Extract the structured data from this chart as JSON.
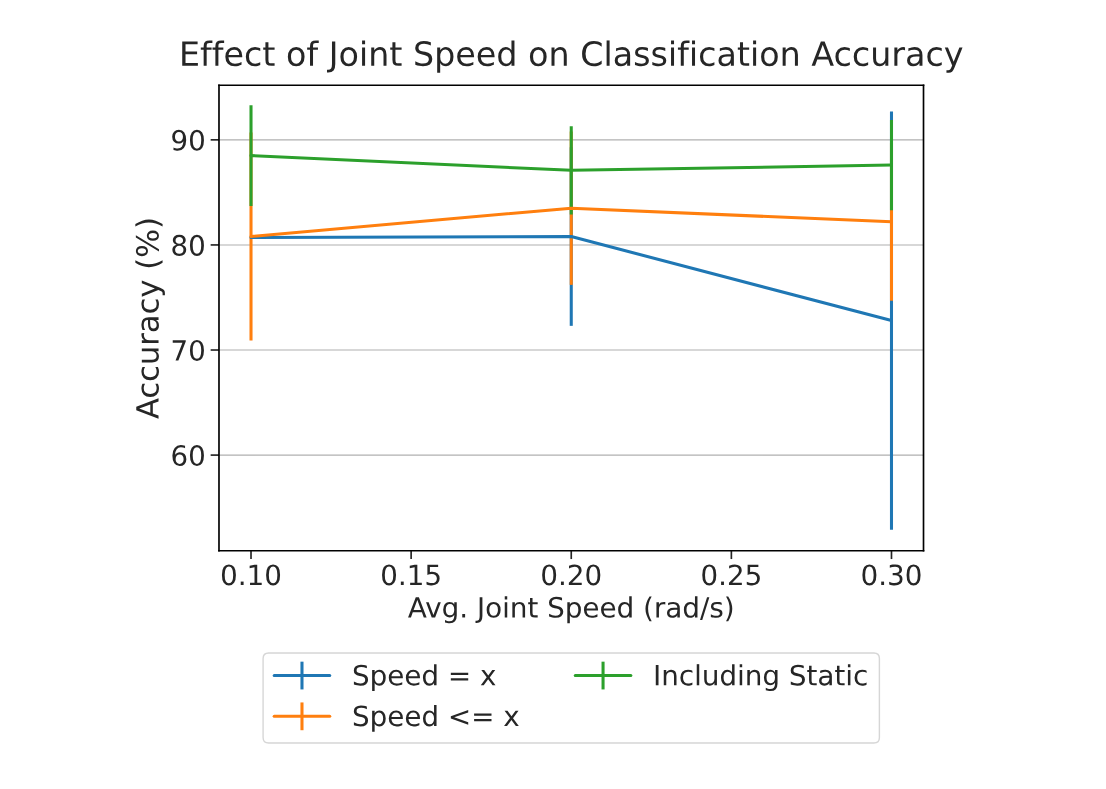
{
  "chart_data": {
    "type": "line",
    "title": "Effect of Joint Speed on Classification Accuracy",
    "xlabel": "Avg. Joint Speed (rad/s)",
    "ylabel": "Accuracy (%)",
    "x": [
      0.1,
      0.2,
      0.3
    ],
    "series": [
      {
        "name": "Speed = x",
        "color": "#1f77b4",
        "values": [
          80.7,
          80.8,
          72.8
        ],
        "errors": [
          null,
          8.5,
          19.9
        ]
      },
      {
        "name": "Speed <= x",
        "color": "#ff7f0e",
        "values": [
          80.8,
          83.5,
          82.2
        ],
        "errors": [
          9.9,
          7.3,
          7.5
        ]
      },
      {
        "name": "Including Static",
        "color": "#2ca02c",
        "values": [
          88.5,
          87.1,
          87.6
        ],
        "errors": [
          4.8,
          4.2,
          4.3
        ]
      }
    ],
    "xlim": [
      0.09,
      0.31
    ],
    "xticks": [
      {
        "value": 0.1,
        "label": "0.10"
      },
      {
        "value": 0.15,
        "label": "0.15"
      },
      {
        "value": 0.2,
        "label": "0.20"
      },
      {
        "value": 0.25,
        "label": "0.25"
      },
      {
        "value": 0.3,
        "label": "0.30"
      }
    ],
    "ylim": [
      50.9,
      95.2
    ],
    "yticks": [
      60,
      70,
      80,
      90
    ],
    "grid": "y",
    "legend": "bottom",
    "marker": "none",
    "line_style": "solid"
  }
}
